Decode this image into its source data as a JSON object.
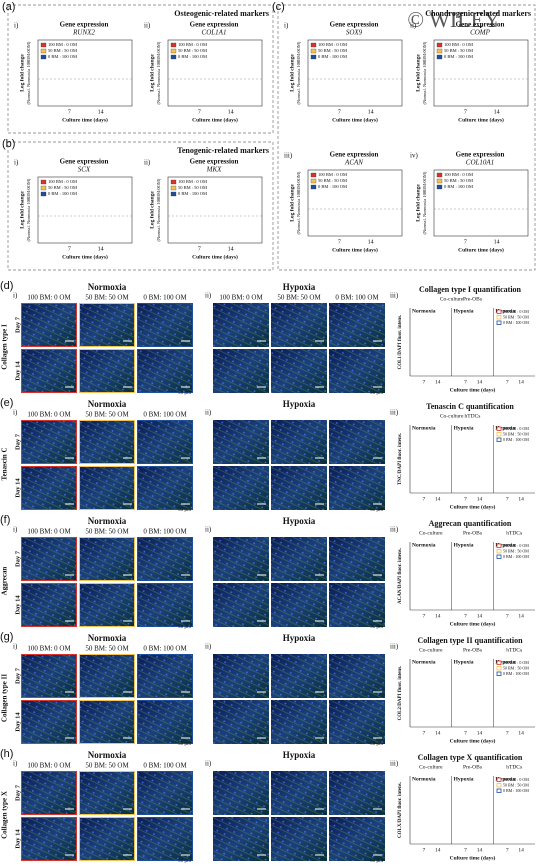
{
  "watermark": "© WILEY",
  "legend": [
    "100 BM : 0 OM",
    "50 BM : 50 OM",
    "0 BM : 100 OM"
  ],
  "days": [
    "7",
    "14"
  ],
  "y_axis_label": "Log fold change",
  "y_axis_sublabel": "(Normal. Normoxia 100BM:0OM)",
  "x_axis_label": "Culture time (days)",
  "gene_heading": "Gene expression",
  "panels": [
    {
      "label": "(a)",
      "title": "Osteogenic-related markers",
      "plots": [
        {
          "roman": "i)",
          "gene": "RUNX2"
        },
        {
          "roman": "ii)",
          "gene": "COL1A1"
        }
      ]
    },
    {
      "label": "(b)",
      "title": "Tenogenic-related markers",
      "plots": [
        {
          "roman": "i)",
          "gene": "SCX"
        },
        {
          "roman": "ii)",
          "gene": "MKX"
        }
      ]
    },
    {
      "label": "(c)",
      "title": "Chondrogenic-related markers",
      "plots": [
        {
          "roman": "i)",
          "gene": "SOX9"
        },
        {
          "roman": "ii)",
          "gene": "COMP"
        },
        {
          "roman": "iii)",
          "gene": "ACAN"
        },
        {
          "roman": "iv)",
          "gene": "COL10A1"
        }
      ]
    }
  ],
  "conditions": [
    "100 BM: 0 OM",
    "50 BM: 50 OM",
    "0 BM: 100 OM"
  ],
  "oxygen": [
    "Normoxia",
    "Hypoxia"
  ],
  "day_labels": [
    "Day 7",
    "Day 14"
  ],
  "scale_bar": "50 μm",
  "romans": [
    "i)",
    "ii)",
    "iii)"
  ],
  "rows": [
    {
      "label": "(d)",
      "stain": "Collagen type I",
      "quant_title": "Collagen type I quantification",
      "quant_axis": "COL1/DAPI fluor. intens.",
      "groups": [
        "Co-culture",
        "Pre-OBs"
      ],
      "sections": [
        "Normoxia",
        "Hypoxia",
        "Hypoxia"
      ]
    },
    {
      "label": "(e)",
      "stain": "Tenascin C",
      "quant_title": "Tenascin C quantification",
      "quant_axis": "TNC/DAPI fluor. intens.",
      "groups": [
        "Co-culture",
        "hTDCs"
      ],
      "sections": [
        "Normoxia",
        "Hypoxia",
        "Hypoxia"
      ]
    },
    {
      "label": "(f)",
      "stain": "Aggrecan",
      "quant_title": "Aggrecan quantification",
      "quant_axis": "ACAN/DAPI fluor. intens.",
      "groups": [
        "Co-culture",
        "Pre-OBs",
        "hTDCs"
      ],
      "sections": [
        "Normoxia",
        "Hypoxia",
        "Hypoxia"
      ]
    },
    {
      "label": "(g)",
      "stain": "Collagen type II",
      "quant_title": "Collagen type II quantification",
      "quant_axis": "COL2/DAPI fluor. intens.",
      "groups": [
        "Co-culture",
        "Pre-OBs",
        "hTDCs"
      ],
      "sections": [
        "Normoxia",
        "Hypoxia",
        "Hypoxia"
      ]
    },
    {
      "label": "(h)",
      "stain": "Collagen type X",
      "quant_title": "Collagen type X quantification",
      "quant_axis": "COLX/DAPI fluor. intens.",
      "groups": [
        "Co-culture",
        "Pre-OBs",
        "hTDCs"
      ],
      "sections": [
        "Normoxia",
        "Hypoxia",
        "Hypoxia"
      ]
    }
  ]
}
